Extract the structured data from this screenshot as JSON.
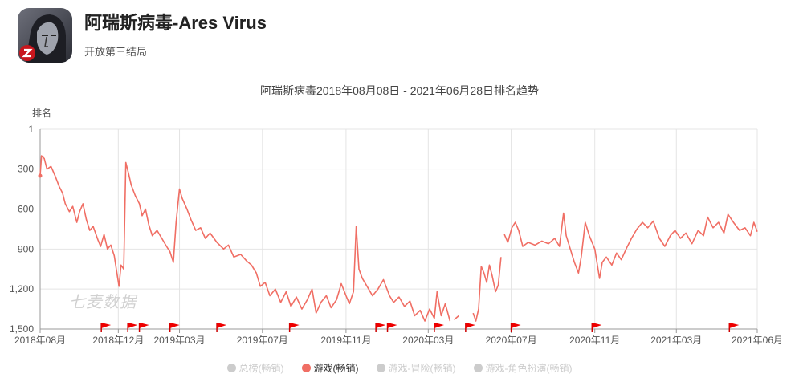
{
  "app": {
    "title": "阿瑞斯病毒-Ares Virus",
    "subtitle": "开放第三结局",
    "icon": "ares-virus-app-icon"
  },
  "watermark": "七麦数据",
  "chart_data": {
    "type": "line",
    "title": "阿瑞斯病毒2018年08月08日 - 2021年06月28日排名趋势",
    "ylabel": "排名",
    "xlabel": "",
    "y_inverted": true,
    "ylim": [
      1,
      1500
    ],
    "y_ticks": [
      "1",
      "300",
      "600",
      "900",
      "1,200",
      "1,500"
    ],
    "y_tick_values": [
      1,
      300,
      600,
      900,
      1200,
      1500
    ],
    "x_range": [
      "2018-08-08",
      "2021-06-28"
    ],
    "x_ticks": [
      "2018年08月",
      "2018年12月",
      "2019年03月",
      "2019年07月",
      "2019年11月",
      "2020年03月",
      "2020年07月",
      "2020年11月",
      "2021年03月",
      "2021年06月"
    ],
    "x_tick_dates": [
      "2018-08-08",
      "2018-12-01",
      "2019-03-01",
      "2019-07-01",
      "2019-11-01",
      "2020-03-01",
      "2020-07-01",
      "2020-11-01",
      "2021-03-01",
      "2021-06-28"
    ],
    "grid": true,
    "legend_position": "bottom",
    "color": "#f06e64",
    "series": [
      {
        "name": "游戏(畅销)",
        "points": [
          [
            "2018-08-08",
            350
          ],
          [
            "2018-08-10",
            200
          ],
          [
            "2018-08-14",
            220
          ],
          [
            "2018-08-18",
            300
          ],
          [
            "2018-08-24",
            280
          ],
          [
            "2018-08-30",
            350
          ],
          [
            "2018-09-05",
            430
          ],
          [
            "2018-09-10",
            480
          ],
          [
            "2018-09-14",
            560
          ],
          [
            "2018-09-20",
            620
          ],
          [
            "2018-09-25",
            580
          ],
          [
            "2018-10-01",
            700
          ],
          [
            "2018-10-05",
            620
          ],
          [
            "2018-10-10",
            560
          ],
          [
            "2018-10-15",
            680
          ],
          [
            "2018-10-20",
            760
          ],
          [
            "2018-10-25",
            730
          ],
          [
            "2018-11-01",
            830
          ],
          [
            "2018-11-05",
            880
          ],
          [
            "2018-11-10",
            790
          ],
          [
            "2018-11-15",
            900
          ],
          [
            "2018-11-20",
            870
          ],
          [
            "2018-11-25",
            950
          ],
          [
            "2018-11-29",
            1080
          ],
          [
            "2018-12-02",
            1180
          ],
          [
            "2018-12-05",
            1020
          ],
          [
            "2018-12-09",
            1050
          ],
          [
            "2018-12-12",
            250
          ],
          [
            "2018-12-16",
            330
          ],
          [
            "2018-12-20",
            420
          ],
          [
            "2018-12-26",
            500
          ],
          [
            "2019-01-01",
            560
          ],
          [
            "2019-01-05",
            650
          ],
          [
            "2019-01-10",
            600
          ],
          [
            "2019-01-15",
            720
          ],
          [
            "2019-01-20",
            800
          ],
          [
            "2019-01-27",
            760
          ],
          [
            "2019-02-03",
            820
          ],
          [
            "2019-02-10",
            880
          ],
          [
            "2019-02-15",
            920
          ],
          [
            "2019-02-20",
            1000
          ],
          [
            "2019-02-24",
            700
          ],
          [
            "2019-03-01",
            450
          ],
          [
            "2019-03-05",
            520
          ],
          [
            "2019-03-12",
            600
          ],
          [
            "2019-03-18",
            680
          ],
          [
            "2019-03-25",
            760
          ],
          [
            "2019-04-01",
            740
          ],
          [
            "2019-04-08",
            820
          ],
          [
            "2019-04-15",
            780
          ],
          [
            "2019-04-25",
            850
          ],
          [
            "2019-05-05",
            900
          ],
          [
            "2019-05-12",
            870
          ],
          [
            "2019-05-20",
            960
          ],
          [
            "2019-05-30",
            940
          ],
          [
            "2019-06-08",
            990
          ],
          [
            "2019-06-15",
            1020
          ],
          [
            "2019-06-22",
            1080
          ],
          [
            "2019-06-28",
            1180
          ],
          [
            "2019-07-05",
            1150
          ],
          [
            "2019-07-12",
            1250
          ],
          [
            "2019-07-20",
            1200
          ],
          [
            "2019-07-28",
            1300
          ],
          [
            "2019-08-05",
            1220
          ],
          [
            "2019-08-12",
            1330
          ],
          [
            "2019-08-20",
            1260
          ],
          [
            "2019-08-28",
            1350
          ],
          [
            "2019-09-05",
            1280
          ],
          [
            "2019-09-12",
            1200
          ],
          [
            "2019-09-18",
            1380
          ],
          [
            "2019-09-25",
            1300
          ],
          [
            "2019-10-03",
            1250
          ],
          [
            "2019-10-10",
            1340
          ],
          [
            "2019-10-18",
            1280
          ],
          [
            "2019-10-25",
            1160
          ],
          [
            "2019-11-01",
            1250
          ],
          [
            "2019-11-06",
            1310
          ],
          [
            "2019-11-12",
            1220
          ],
          [
            "2019-11-16",
            730
          ],
          [
            "2019-11-20",
            1050
          ],
          [
            "2019-11-25",
            1120
          ],
          [
            "2019-12-02",
            1180
          ],
          [
            "2019-12-10",
            1250
          ],
          [
            "2019-12-18",
            1200
          ],
          [
            "2019-12-26",
            1130
          ],
          [
            "2020-01-04",
            1250
          ],
          [
            "2020-01-10",
            1300
          ],
          [
            "2020-01-18",
            1260
          ],
          [
            "2020-01-26",
            1330
          ],
          [
            "2020-02-03",
            1290
          ],
          [
            "2020-02-10",
            1400
          ],
          [
            "2020-02-18",
            1360
          ],
          [
            "2020-02-25",
            1440
          ],
          [
            "2020-03-03",
            1350
          ],
          [
            "2020-03-10",
            1420
          ],
          [
            "2020-03-14",
            1220
          ],
          [
            "2020-03-20",
            1400
          ],
          [
            "2020-03-26",
            1310
          ],
          [
            "2020-04-02",
            1440
          ]
        ],
        "segment_2": [
          [
            "2020-04-08",
            1430
          ],
          [
            "2020-04-15",
            1400
          ]
        ],
        "segment_3": [
          [
            "2020-05-06",
            1380
          ],
          [
            "2020-05-10",
            1440
          ],
          [
            "2020-05-14",
            1350
          ],
          [
            "2020-05-18",
            1030
          ],
          [
            "2020-05-22",
            1080
          ],
          [
            "2020-05-26",
            1150
          ],
          [
            "2020-05-30",
            1020
          ],
          [
            "2020-06-03",
            1100
          ],
          [
            "2020-06-08",
            1220
          ],
          [
            "2020-06-12",
            1170
          ],
          [
            "2020-06-16",
            960
          ]
        ],
        "segment_4": [
          [
            "2020-06-21",
            790
          ],
          [
            "2020-06-26",
            850
          ],
          [
            "2020-07-02",
            740
          ],
          [
            "2020-07-07",
            700
          ],
          [
            "2020-07-12",
            760
          ],
          [
            "2020-07-18",
            880
          ],
          [
            "2020-07-26",
            850
          ],
          [
            "2020-08-05",
            870
          ],
          [
            "2020-08-15",
            840
          ],
          [
            "2020-08-25",
            860
          ],
          [
            "2020-09-03",
            820
          ],
          [
            "2020-09-10",
            880
          ],
          [
            "2020-09-16",
            630
          ],
          [
            "2020-09-20",
            800
          ],
          [
            "2020-09-26",
            900
          ],
          [
            "2020-10-02",
            1000
          ],
          [
            "2020-10-08",
            1080
          ],
          [
            "2020-10-12",
            960
          ],
          [
            "2020-10-18",
            700
          ],
          [
            "2020-10-24",
            800
          ],
          [
            "2020-11-01",
            900
          ],
          [
            "2020-11-08",
            1120
          ],
          [
            "2020-11-12",
            1000
          ],
          [
            "2020-11-18",
            960
          ],
          [
            "2020-11-26",
            1020
          ],
          [
            "2020-12-03",
            930
          ],
          [
            "2020-12-10",
            980
          ],
          [
            "2020-12-18",
            890
          ],
          [
            "2020-12-25",
            820
          ],
          [
            "2021-01-02",
            750
          ],
          [
            "2021-01-10",
            700
          ],
          [
            "2021-01-18",
            740
          ],
          [
            "2021-01-26",
            690
          ],
          [
            "2021-02-04",
            820
          ],
          [
            "2021-02-12",
            880
          ],
          [
            "2021-02-20",
            800
          ],
          [
            "2021-02-27",
            760
          ],
          [
            "2021-03-07",
            820
          ],
          [
            "2021-03-15",
            780
          ],
          [
            "2021-03-24",
            860
          ],
          [
            "2021-04-02",
            760
          ],
          [
            "2021-04-10",
            800
          ],
          [
            "2021-04-16",
            660
          ],
          [
            "2021-04-24",
            740
          ],
          [
            "2021-05-02",
            700
          ],
          [
            "2021-05-10",
            780
          ],
          [
            "2021-05-16",
            640
          ],
          [
            "2021-05-24",
            700
          ],
          [
            "2021-06-02",
            760
          ],
          [
            "2021-06-10",
            740
          ],
          [
            "2021-06-18",
            800
          ],
          [
            "2021-06-23",
            700
          ],
          [
            "2021-06-28",
            770
          ]
        ]
      }
    ],
    "event_flags": [
      "2018-11-06",
      "2018-12-15",
      "2019-01-01",
      "2019-02-15",
      "2019-04-25",
      "2019-08-10",
      "2019-12-15",
      "2020-01-01",
      "2020-03-10",
      "2020-04-25",
      "2020-07-01",
      "2020-10-28",
      "2021-05-18"
    ]
  },
  "legend": [
    {
      "label": "总榜(畅销)",
      "active": false
    },
    {
      "label": "游戏(畅销)",
      "active": true
    },
    {
      "label": "游戏-冒险(畅销)",
      "active": false
    },
    {
      "label": "游戏-角色扮演(畅销)",
      "active": false
    }
  ]
}
